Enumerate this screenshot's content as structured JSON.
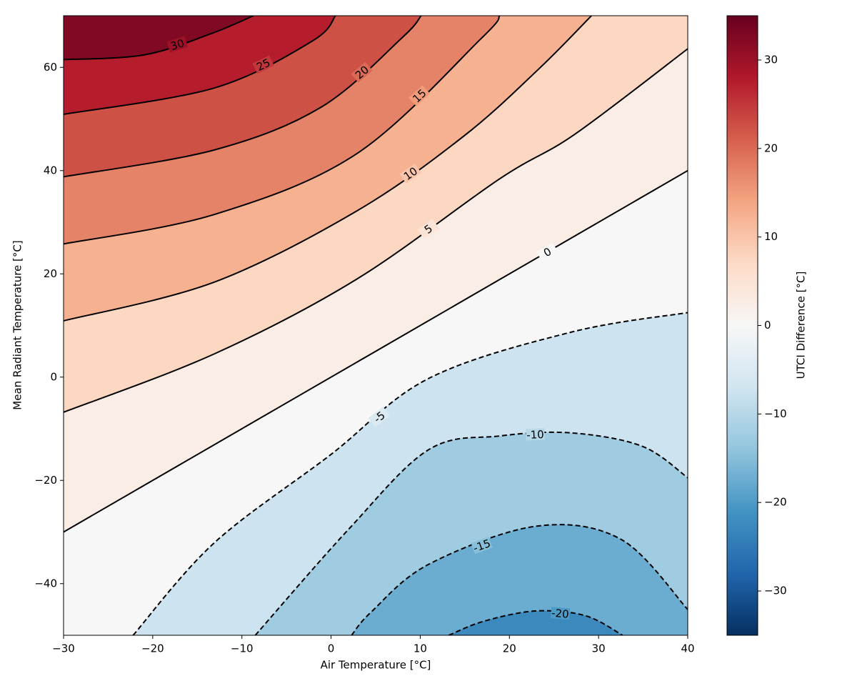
{
  "chart_data": {
    "type": "contour",
    "xlabel": "Air Temperature [°C]",
    "ylabel": "Mean Radiant Temperature [°C]",
    "xlim": [
      -30,
      40
    ],
    "ylim": [
      -50,
      70
    ],
    "xticks": [
      {
        "value": -30,
        "label": "−30"
      },
      {
        "value": -20,
        "label": "−20"
      },
      {
        "value": -10,
        "label": "−10"
      },
      0,
      10,
      20,
      30,
      40
    ],
    "yticks": [
      {
        "value": -40,
        "label": "−40"
      },
      {
        "value": -20,
        "label": "−20"
      },
      0,
      20,
      40,
      60
    ],
    "colorbar": {
      "label": "UTCI Difference [°C]",
      "lim": [
        -35,
        35
      ],
      "ticks": [
        {
          "value": -30,
          "label": "−30"
        },
        {
          "value": -20,
          "label": "−20"
        },
        {
          "value": -10,
          "label": "−10"
        },
        0,
        10,
        20,
        30
      ],
      "colormap": [
        "#053061",
        "#2166ac",
        "#4393c3",
        "#92c5de",
        "#d1e5f0",
        "#f7f7f7",
        "#fddbc7",
        "#f4a582",
        "#d6604d",
        "#b2182b",
        "#67001f"
      ]
    },
    "contours": [
      {
        "level": 30,
        "dashed": false,
        "x": [
          -30,
          -21,
          -13.5,
          -8.7
        ],
        "y": [
          61.5,
          62.4,
          66.5,
          70
        ]
      },
      {
        "level": 25,
        "dashed": false,
        "x": [
          -30,
          -13.1,
          -2.1,
          0.5
        ],
        "y": [
          50.9,
          56,
          65.1,
          70
        ]
      },
      {
        "level": 20,
        "dashed": false,
        "x": [
          -30,
          -13.1,
          -1.1,
          8,
          10.1
        ],
        "y": [
          38.8,
          44,
          52.3,
          65.8,
          70
        ]
      },
      {
        "level": 15,
        "dashed": false,
        "x": [
          -30,
          -13.1,
          2.9,
          16.9,
          18.9
        ],
        "y": [
          25.8,
          31.5,
          43.3,
          65.7,
          70
        ]
      },
      {
        "level": 10,
        "dashed": false,
        "x": [
          -30,
          -13.1,
          2.9,
          14.9,
          23.3,
          29.2
        ],
        "y": [
          10.9,
          18.4,
          32.2,
          46.7,
          59.7,
          70
        ]
      },
      {
        "level": 5,
        "dashed": false,
        "x": [
          -30,
          -13.1,
          2.9,
          18.9,
          27.3,
          40
        ],
        "y": [
          -6.8,
          4.5,
          19,
          38.4,
          47,
          63.6
        ]
      },
      {
        "level": 0,
        "dashed": false,
        "x": [
          -30,
          8.5,
          40
        ],
        "y": [
          -30,
          8.5,
          40
        ]
      },
      {
        "level": -5,
        "dashed": true,
        "x": [
          -22.2,
          -13.1,
          -0.1,
          10.9,
          26.9,
          40
        ],
        "y": [
          -50,
          -32.1,
          -15.1,
          -0.3,
          8.7,
          12.5
        ]
      },
      {
        "level": -10,
        "dashed": true,
        "x": [
          -8.5,
          1.9,
          10.9,
          18.9,
          26.9,
          34.9,
          40
        ],
        "y": [
          -50,
          -29.6,
          -14.1,
          -11.4,
          -10.8,
          -13.4,
          -19.5
        ]
      },
      {
        "level": -15,
        "dashed": true,
        "x": [
          2.3,
          4.5,
          10.9,
          22.9,
          32.5,
          40
        ],
        "y": [
          -50,
          -45.5,
          -36.3,
          -28.9,
          -31.4,
          -45
        ]
      },
      {
        "level": -20,
        "dashed": true,
        "x": [
          13.2,
          17.1,
          22.9,
          28.5,
          32.7
        ],
        "y": [
          -50,
          -47.3,
          -45.3,
          -46.2,
          -50
        ]
      }
    ]
  }
}
